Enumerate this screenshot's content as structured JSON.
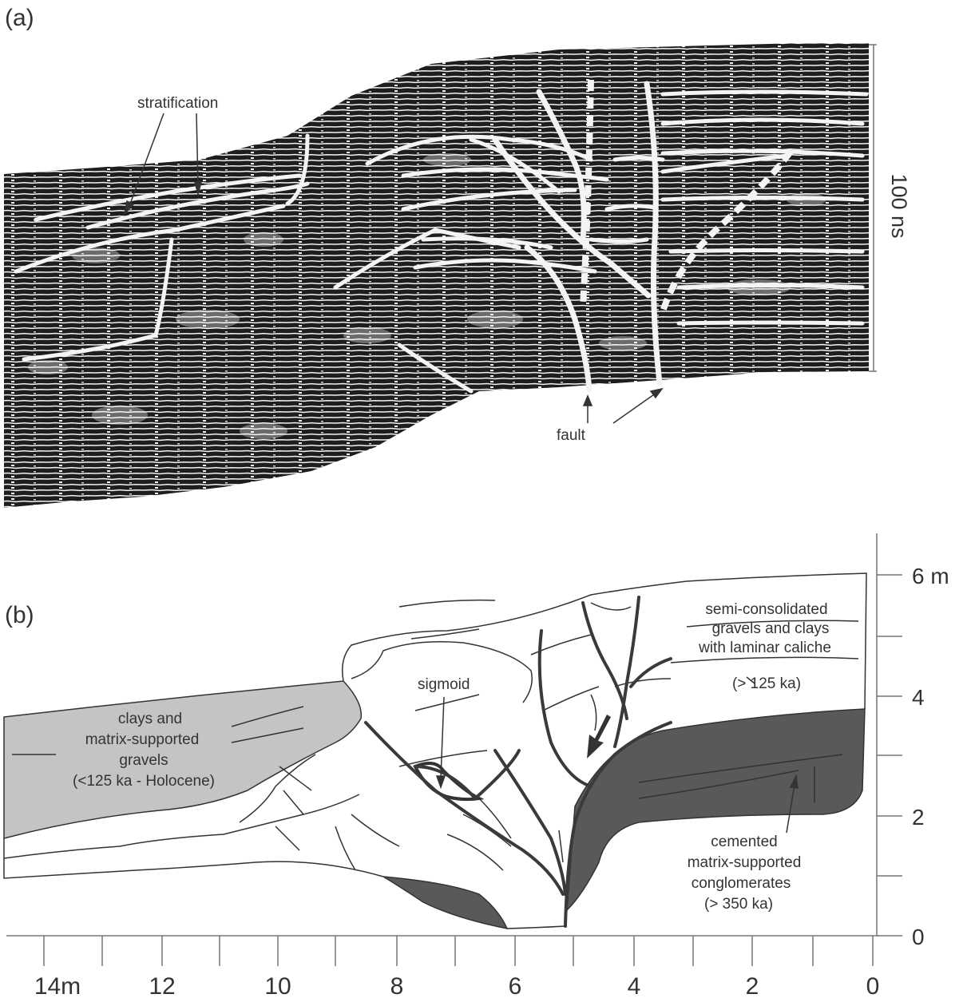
{
  "panel_a": {
    "label": "(a)",
    "annotations": {
      "stratification": "stratification",
      "fault": "fault",
      "time_scale": "100 ns"
    }
  },
  "panel_b": {
    "label": "(b)",
    "units": {
      "clays": [
        "clays and",
        "matrix-supported",
        "gravels",
        "(<125 ka - Holocene)"
      ],
      "sigmoid": "sigmoid",
      "semi": [
        "semi-consolidated",
        "gravels and clays",
        "with laminar caliche"
      ],
      "semi_age": "(> 125 ka)",
      "cemented": [
        "cemented",
        "matrix-supported",
        "conglomerates",
        "(> 350 ka)"
      ]
    },
    "y_axis_labels": [
      "6 m",
      "4",
      "2",
      "0"
    ],
    "x_axis_labels": [
      "14m",
      "12",
      "10",
      "8",
      "6",
      "4",
      "2",
      "0"
    ]
  },
  "colors": {
    "light_fill": "#c4c4c4",
    "dark_fill": "#595959",
    "line": "#3a3a3a"
  }
}
